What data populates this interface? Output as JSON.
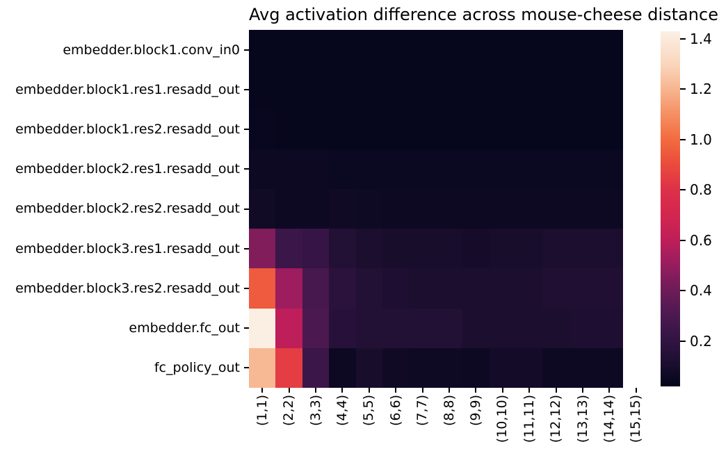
{
  "chart_data": {
    "type": "heatmap",
    "title": "Avg activation difference across mouse-cheese distance",
    "rows": [
      "embedder.block1.conv_in0",
      "embedder.block1.res1.resadd_out",
      "embedder.block1.res2.resadd_out",
      "embedder.block2.res1.resadd_out",
      "embedder.block2.res2.resadd_out",
      "embedder.block3.res1.resadd_out",
      "embedder.block3.res2.resadd_out",
      "embedder.fc_out",
      "fc_policy_out"
    ],
    "columns": [
      "(1,1)",
      "(2,2)",
      "(3,3)",
      "(4,4)",
      "(5,5)",
      "(6,6)",
      "(7,7)",
      "(8,8)",
      "(9,9)",
      "(10,10)",
      "(11,11)",
      "(12,12)",
      "(13,13)",
      "(14,14)",
      "(15,15)"
    ],
    "values": [
      [
        0.03,
        0.03,
        0.03,
        0.03,
        0.03,
        0.03,
        0.03,
        0.03,
        0.03,
        0.03,
        0.03,
        0.03,
        0.03,
        0.03,
        null
      ],
      [
        0.03,
        0.03,
        0.03,
        0.03,
        0.03,
        0.03,
        0.03,
        0.03,
        0.03,
        0.03,
        0.03,
        0.03,
        0.03,
        0.03,
        null
      ],
      [
        0.04,
        0.03,
        0.03,
        0.03,
        0.03,
        0.03,
        0.03,
        0.03,
        0.03,
        0.03,
        0.03,
        0.03,
        0.03,
        0.03,
        null
      ],
      [
        0.055,
        0.055,
        0.055,
        0.05,
        0.05,
        0.05,
        0.05,
        0.05,
        0.05,
        0.05,
        0.05,
        0.05,
        0.05,
        0.05,
        null
      ],
      [
        0.075,
        0.055,
        0.06,
        0.07,
        0.065,
        0.06,
        0.06,
        0.06,
        0.06,
        0.06,
        0.06,
        0.06,
        0.06,
        0.06,
        null
      ],
      [
        0.45,
        0.24,
        0.22,
        0.14,
        0.11,
        0.1,
        0.1,
        0.1,
        0.09,
        0.1,
        0.1,
        0.11,
        0.11,
        0.11,
        null
      ],
      [
        0.95,
        0.52,
        0.28,
        0.17,
        0.14,
        0.12,
        0.11,
        0.11,
        0.11,
        0.11,
        0.11,
        0.13,
        0.13,
        0.13,
        null
      ],
      [
        1.42,
        0.6,
        0.3,
        0.16,
        0.14,
        0.14,
        0.14,
        0.14,
        0.11,
        0.11,
        0.11,
        0.11,
        0.12,
        0.12,
        null
      ],
      [
        1.21,
        0.85,
        0.24,
        0.055,
        0.1,
        0.07,
        0.065,
        0.065,
        0.055,
        0.08,
        0.08,
        0.055,
        0.06,
        0.06,
        null
      ]
    ],
    "vmin": 0.02,
    "vmax": 1.43,
    "colormap": "rocket",
    "colormap_stops": [
      {
        "v": 0.02,
        "c": "#03051A"
      },
      {
        "v": 0.1,
        "c": "#190D2C"
      },
      {
        "v": 0.2,
        "c": "#311443"
      },
      {
        "v": 0.3,
        "c": "#4B1950"
      },
      {
        "v": 0.4,
        "c": "#6C1C57"
      },
      {
        "v": 0.5,
        "c": "#961D5F"
      },
      {
        "v": 0.6,
        "c": "#BE1E59"
      },
      {
        "v": 0.7,
        "c": "#D3264F"
      },
      {
        "v": 0.8,
        "c": "#DD3049"
      },
      {
        "v": 0.9,
        "c": "#EA4B3C"
      },
      {
        "v": 1.0,
        "c": "#F26B3F"
      },
      {
        "v": 1.1,
        "c": "#F58F63"
      },
      {
        "v": 1.2,
        "c": "#F7B590"
      },
      {
        "v": 1.3,
        "c": "#FAD6BC"
      },
      {
        "v": 1.43,
        "c": "#FBF0E5"
      }
    ],
    "colorbar_ticks": [
      "1.4",
      "1.2",
      "1.0",
      "0.8",
      "0.6",
      "0.4",
      "0.2"
    ],
    "legend_position": "right",
    "grid": false,
    "missing_color": "#FFFFFF",
    "background": "#FFFFFF",
    "text_color": "#000000"
  }
}
